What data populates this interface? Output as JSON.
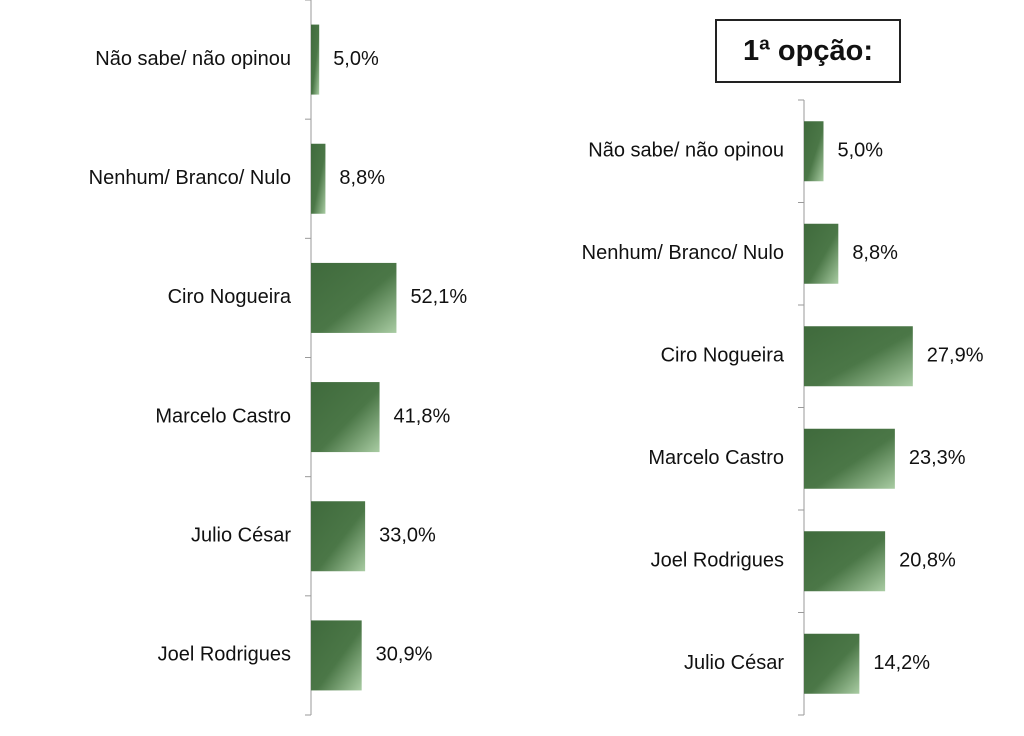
{
  "chart_data": [
    {
      "type": "bar",
      "orientation": "horizontal",
      "title": "",
      "categories": [
        "Não sabe/ não opinou",
        "Nenhum/ Branco/ Nulo",
        "Ciro Nogueira",
        "Marcelo Castro",
        "Julio César",
        "Joel Rodrigues"
      ],
      "values": [
        5.0,
        8.8,
        52.1,
        41.8,
        33.0,
        30.9
      ],
      "value_labels": [
        "5,0%",
        "8,8%",
        "52,1%",
        "41,8%",
        "33,0%",
        "30,9%"
      ],
      "unit": "%",
      "xlim": [
        0,
        60
      ],
      "grid": false,
      "legend": "none",
      "bar_color_dark": "#3f6a3c",
      "bar_color_light": "#a9cca3"
    },
    {
      "type": "bar",
      "orientation": "horizontal",
      "title": "1ª opção:",
      "categories": [
        "Não sabe/ não opinou",
        "Nenhum/ Branco/ Nulo",
        "Ciro Nogueira",
        "Marcelo Castro",
        "Joel Rodrigues",
        "Julio César"
      ],
      "values": [
        5.0,
        8.8,
        27.9,
        23.3,
        20.8,
        14.2
      ],
      "value_labels": [
        "5,0%",
        "8,8%",
        "27,9%",
        "23,3%",
        "20,8%",
        "14,2%"
      ],
      "unit": "%",
      "xlim": [
        0,
        60
      ],
      "grid": false,
      "legend": "none",
      "bar_color_dark": "#3f6a3c",
      "bar_color_light": "#a9cca3"
    }
  ]
}
